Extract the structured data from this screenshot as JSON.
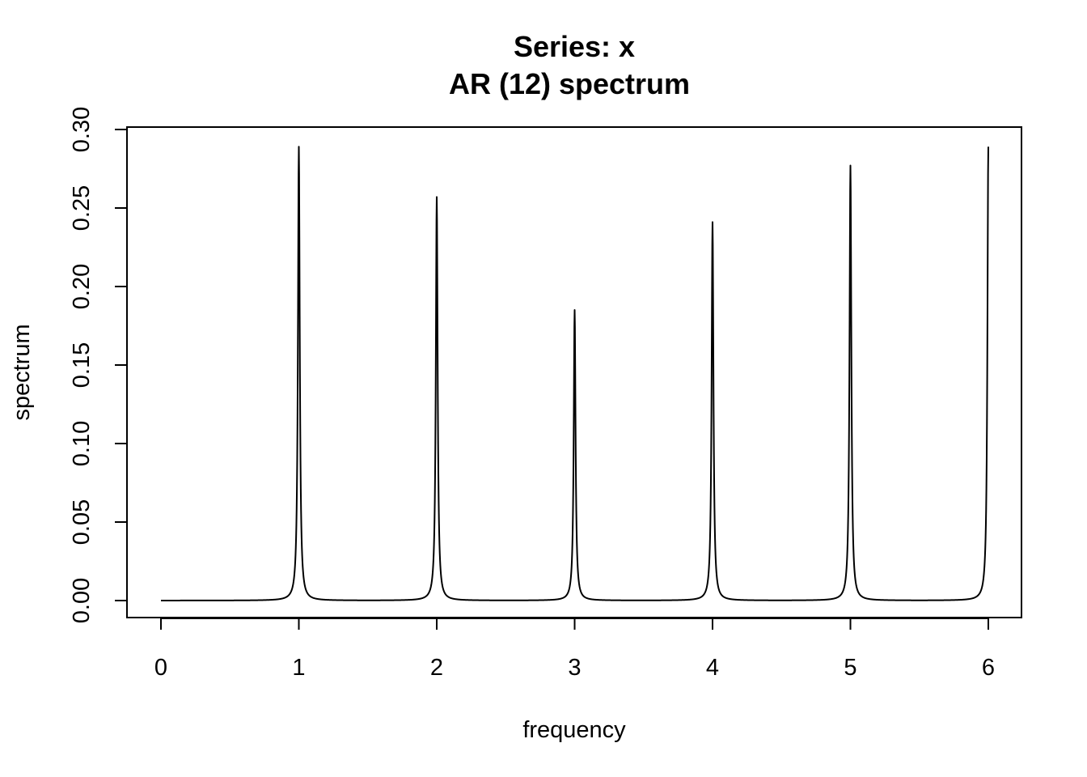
{
  "chart_data": {
    "type": "line",
    "title": "Series: x",
    "subtitle": "AR (12) spectrum",
    "xlabel": "frequency",
    "ylabel": "spectrum",
    "xlim": [
      0,
      6
    ],
    "ylim": [
      0,
      0.3
    ],
    "x_ticks": [
      "0",
      "1",
      "2",
      "3",
      "4",
      "5",
      "6"
    ],
    "y_ticks": [
      "0.00",
      "0.05",
      "0.10",
      "0.15",
      "0.20",
      "0.25",
      "0.30"
    ],
    "grid": false,
    "legend": "none",
    "peaks": [
      {
        "frequency": 1,
        "spectrum": 0.289
      },
      {
        "frequency": 2,
        "spectrum": 0.257
      },
      {
        "frequency": 3,
        "spectrum": 0.185
      },
      {
        "frequency": 4,
        "spectrum": 0.241
      },
      {
        "frequency": 5,
        "spectrum": 0.277
      },
      {
        "frequency": 6,
        "spectrum": 0.289
      }
    ]
  }
}
